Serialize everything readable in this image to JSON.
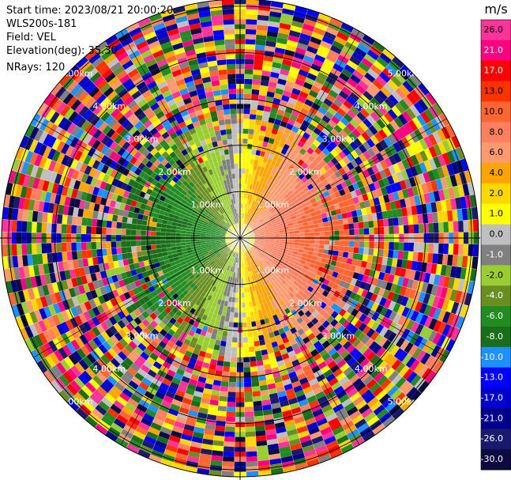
{
  "header": {
    "start_time": "Start time: 2023/08/21 20:00:20",
    "instrument": "WLS200s-181",
    "field": "Field: VEL",
    "elevation": "Elevation(deg): 35.30",
    "nrays": "NRays: 120"
  },
  "chart_data": {
    "type": "heatmap",
    "subtype": "polar-ppi",
    "field": "VEL",
    "unit": "m/s",
    "n_rays": 120,
    "elevation_deg": 35.3,
    "ring_labels": [
      "1.00km",
      "2.00km",
      "3.00km",
      "4.00km",
      "5.00km"
    ],
    "ring_ranges_km": [
      1,
      2,
      3,
      4,
      5
    ],
    "max_range_km": 5.15,
    "colorbar": {
      "label": "m/s",
      "ticks": [
        "26.0",
        "21.0",
        "17.0",
        "13.0",
        "10.0",
        "8.0",
        "6.0",
        "4.0",
        "2.0",
        "1.0",
        "0.0",
        "-1.0",
        "-2.0",
        "-4.0",
        "-6.0",
        "-8.0",
        "-10.0",
        "-13.0",
        "-17.0",
        "-21.0",
        "-26.0",
        "-30.0"
      ],
      "colors": [
        "#ff3399",
        "#ff0080",
        "#ff0000",
        "#ff3300",
        "#ff6633",
        "#ff8060",
        "#ff9a70",
        "#ffa500",
        "#ffd700",
        "#ffff00",
        "#bfbfbf",
        "#808080",
        "#9acd32",
        "#6b8e23",
        "#228b22",
        "#1a6e1a",
        "#1e90ff",
        "#0000ff",
        "#0000cd",
        "#00008b",
        "#191970",
        "#0b0b40"
      ]
    }
  }
}
